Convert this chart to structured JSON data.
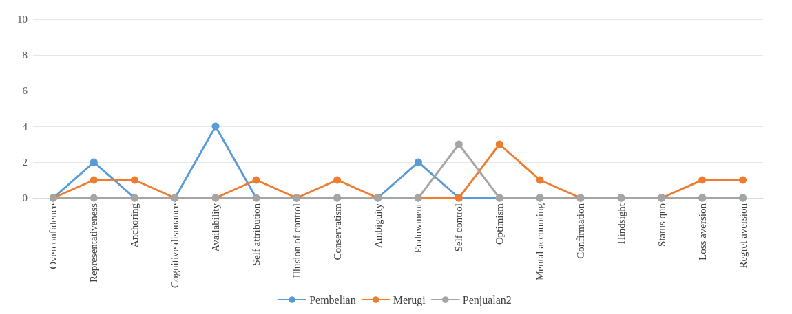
{
  "chart_data": {
    "type": "line",
    "categories": [
      "Overconfidence",
      "Representativeness",
      "Anchoring",
      "Cognitive disonance",
      "Availability",
      "Self attribution",
      "Illusion of control",
      "Conservatism",
      "Ambiguity",
      "Endowment",
      "Self control",
      "Optimism",
      "Mental accounting",
      "Confirmation",
      "Hindsight",
      "Status quo",
      "Loss aversion",
      "Regret aversion"
    ],
    "series": [
      {
        "name": "Pembelian",
        "color": "#5b9bd5",
        "values": [
          0,
          2,
          0,
          0,
          4,
          0,
          0,
          0,
          0,
          2,
          0,
          0,
          0,
          0,
          0,
          0,
          0,
          0
        ]
      },
      {
        "name": "Merugi",
        "color": "#ed7d31",
        "values": [
          0,
          1,
          1,
          0,
          0,
          1,
          0,
          1,
          0,
          0,
          0,
          3,
          1,
          0,
          0,
          0,
          1,
          1
        ]
      },
      {
        "name": "Penjualan2",
        "color": "#a5a5a5",
        "values": [
          0,
          0,
          0,
          0,
          0,
          0,
          0,
          0,
          0,
          0,
          3,
          0,
          0,
          0,
          0,
          0,
          0,
          0
        ]
      }
    ],
    "ylim": [
      0,
      10
    ],
    "yticks": [
      0,
      2,
      4,
      6,
      8,
      10
    ],
    "grid": "y",
    "legend": "bottom",
    "marker": "circle",
    "line_style": "solid"
  }
}
